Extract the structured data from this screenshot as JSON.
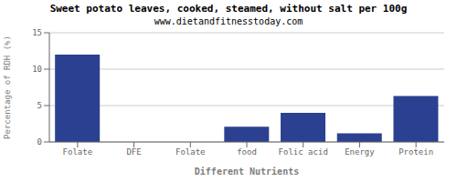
{
  "chart_data": {
    "type": "bar",
    "title": "Sweet potato leaves, cooked, steamed, without salt per 100g",
    "subtitle": "www.dietandfitnesstoday.com",
    "xlabel": "Different Nutrients",
    "ylabel": "Percentage of RDH (%)",
    "categories": [
      "Folate",
      "DFE",
      "Folate",
      "food",
      "Folic acid",
      "Energy",
      "Protein"
    ],
    "values": [
      12.0,
      0.0,
      0.0,
      2.1,
      4.0,
      1.2,
      6.3
    ],
    "color": "#2b4090",
    "ylim": [
      0,
      15
    ],
    "yticks": [
      0,
      5,
      10,
      15
    ],
    "grid": true
  }
}
